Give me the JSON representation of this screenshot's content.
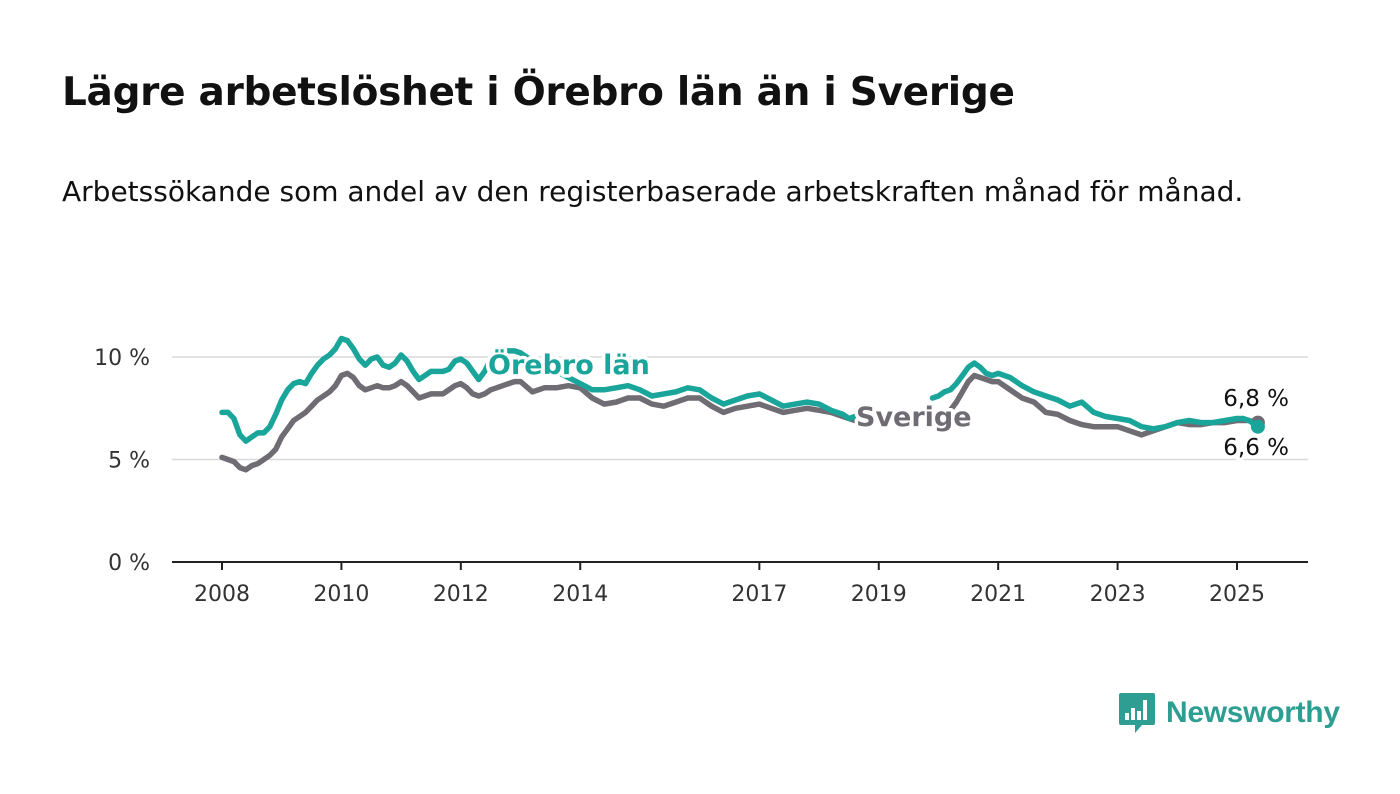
{
  "title": "Lägre arbetslöshet i Örebro län än i Sverige",
  "subtitle": "Arbetssökande som andel av den registerbaserade arbetskraften månad för månad.",
  "brand": {
    "name": "Newsworthy",
    "color": "#2d9e91"
  },
  "colors": {
    "orebro": "#1aa59a",
    "sverige": "#6f6c74",
    "grid": "#d9d9d9",
    "axis": "#222222"
  },
  "chart_data": {
    "type": "line",
    "title": "",
    "xlabel": "",
    "ylabel": "",
    "ylim": [
      0,
      11.5
    ],
    "xlim": [
      2007.2,
      2026.2
    ],
    "y_ticks": [
      {
        "value": 0,
        "label": "0 %"
      },
      {
        "value": 5,
        "label": "5 %"
      },
      {
        "value": 10,
        "label": "10 %"
      }
    ],
    "x_ticks": [
      {
        "value": 2008,
        "label": "2008"
      },
      {
        "value": 2010,
        "label": "2010"
      },
      {
        "value": 2012,
        "label": "2012"
      },
      {
        "value": 2014,
        "label": "2014"
      },
      {
        "value": 2017,
        "label": "2017"
      },
      {
        "value": 2019,
        "label": "2019"
      },
      {
        "value": 2021,
        "label": "2021"
      },
      {
        "value": 2023,
        "label": "2023"
      },
      {
        "value": 2025,
        "label": "2025"
      }
    ],
    "grid": true,
    "series": [
      {
        "name": "Sverige",
        "color": "#6f6c74",
        "end_label": "6,8 %",
        "x": [
          2008.0,
          2008.2,
          2008.3,
          2008.4,
          2008.5,
          2008.6,
          2008.7,
          2008.8,
          2008.9,
          2009.0,
          2009.1,
          2009.2,
          2009.3,
          2009.4,
          2009.5,
          2009.6,
          2009.7,
          2009.8,
          2009.9,
          2010.0,
          2010.1,
          2010.2,
          2010.3,
          2010.4,
          2010.5,
          2010.6,
          2010.7,
          2010.8,
          2010.9,
          2011.0,
          2011.1,
          2011.2,
          2011.3,
          2011.4,
          2011.5,
          2011.6,
          2011.7,
          2011.8,
          2011.9,
          2012.0,
          2012.1,
          2012.2,
          2012.3,
          2012.4,
          2012.5,
          2012.6,
          2012.7,
          2012.8,
          2012.9,
          2013.0,
          2013.2,
          2013.4,
          2013.6,
          2013.8,
          2014.0,
          2014.2,
          2014.4,
          2014.6,
          2014.8,
          2015.0,
          2015.2,
          2015.4,
          2015.6,
          2015.8,
          2016.0,
          2016.2,
          2016.4,
          2016.6,
          2016.8,
          2017.0,
          2017.2,
          2017.4,
          2017.6,
          2017.8,
          2018.0,
          2018.2,
          2018.4,
          2018.5,
          2018.6,
          2018.7,
          2020.2,
          2020.3,
          2020.4,
          2020.5,
          2020.6,
          2020.7,
          2020.8,
          2020.9,
          2021.0,
          2021.2,
          2021.4,
          2021.6,
          2021.8,
          2022.0,
          2022.2,
          2022.4,
          2022.6,
          2022.8,
          2023.0,
          2023.2,
          2023.4,
          2023.6,
          2023.8,
          2024.0,
          2024.2,
          2024.4,
          2024.6,
          2024.8,
          2025.0,
          2025.1,
          2025.2,
          2025.3,
          2025.35
        ],
        "values": [
          5.1,
          4.9,
          4.6,
          4.5,
          4.7,
          4.8,
          5.0,
          5.2,
          5.5,
          6.1,
          6.5,
          6.9,
          7.1,
          7.3,
          7.6,
          7.9,
          8.1,
          8.3,
          8.6,
          9.1,
          9.2,
          9.0,
          8.6,
          8.4,
          8.5,
          8.6,
          8.5,
          8.5,
          8.6,
          8.8,
          8.6,
          8.3,
          8.0,
          8.1,
          8.2,
          8.2,
          8.2,
          8.4,
          8.6,
          8.7,
          8.5,
          8.2,
          8.1,
          8.2,
          8.4,
          8.5,
          8.6,
          8.7,
          8.8,
          8.8,
          8.3,
          8.5,
          8.5,
          8.6,
          8.5,
          8.0,
          7.7,
          7.8,
          8.0,
          8.0,
          7.7,
          7.6,
          7.8,
          8.0,
          8.0,
          7.6,
          7.3,
          7.5,
          7.6,
          7.7,
          7.5,
          7.3,
          7.4,
          7.5,
          7.4,
          7.3,
          7.1,
          7.0,
          6.9,
          7.0,
          7.4,
          7.8,
          8.3,
          8.8,
          9.1,
          9.0,
          8.9,
          8.8,
          8.8,
          8.4,
          8.0,
          7.8,
          7.3,
          7.2,
          6.9,
          6.7,
          6.6,
          6.6,
          6.6,
          6.4,
          6.2,
          6.4,
          6.6,
          6.8,
          6.7,
          6.7,
          6.8,
          6.8,
          6.9,
          6.9,
          6.9,
          6.8,
          6.8
        ]
      },
      {
        "name": "Örebro län",
        "color": "#1aa59a",
        "end_label": "6,6 %",
        "x": [
          2008.0,
          2008.1,
          2008.2,
          2008.3,
          2008.4,
          2008.5,
          2008.6,
          2008.7,
          2008.8,
          2008.9,
          2009.0,
          2009.1,
          2009.2,
          2009.3,
          2009.4,
          2009.5,
          2009.6,
          2009.7,
          2009.8,
          2009.9,
          2010.0,
          2010.1,
          2010.2,
          2010.3,
          2010.4,
          2010.5,
          2010.6,
          2010.7,
          2010.8,
          2010.9,
          2011.0,
          2011.1,
          2011.2,
          2011.3,
          2011.4,
          2011.5,
          2011.6,
          2011.7,
          2011.8,
          2011.9,
          2012.0,
          2012.1,
          2012.2,
          2012.3,
          2012.4,
          2012.5,
          2012.6,
          2012.7,
          2012.8,
          2012.9,
          2013.0,
          2013.2,
          2013.4,
          2013.6,
          2013.8,
          2014.0,
          2014.2,
          2014.4,
          2014.6,
          2014.8,
          2015.0,
          2015.2,
          2015.4,
          2015.6,
          2015.8,
          2016.0,
          2016.2,
          2016.4,
          2016.6,
          2016.8,
          2017.0,
          2017.2,
          2017.4,
          2017.6,
          2017.8,
          2018.0,
          2018.2,
          2018.4,
          2018.5,
          2018.6,
          2018.7,
          2019.9,
          2020.0,
          2020.1,
          2020.2,
          2020.3,
          2020.4,
          2020.5,
          2020.6,
          2020.7,
          2020.8,
          2020.9,
          2021.0,
          2021.2,
          2021.4,
          2021.6,
          2021.8,
          2022.0,
          2022.2,
          2022.4,
          2022.6,
          2022.8,
          2023.0,
          2023.2,
          2023.4,
          2023.6,
          2023.8,
          2024.0,
          2024.2,
          2024.4,
          2024.6,
          2024.8,
          2025.0,
          2025.1,
          2025.2,
          2025.3,
          2025.35
        ],
        "values": [
          7.3,
          7.3,
          7.0,
          6.2,
          5.9,
          6.1,
          6.3,
          6.3,
          6.6,
          7.2,
          7.9,
          8.4,
          8.7,
          8.8,
          8.7,
          9.2,
          9.6,
          9.9,
          10.1,
          10.4,
          10.9,
          10.8,
          10.4,
          9.9,
          9.6,
          9.9,
          10.0,
          9.6,
          9.5,
          9.7,
          10.1,
          9.8,
          9.3,
          8.9,
          9.1,
          9.3,
          9.3,
          9.3,
          9.4,
          9.8,
          9.9,
          9.7,
          9.3,
          8.9,
          9.3,
          9.9,
          10.1,
          10.3,
          10.3,
          10.3,
          10.2,
          9.8,
          9.6,
          9.3,
          9.0,
          8.7,
          8.4,
          8.4,
          8.5,
          8.6,
          8.4,
          8.1,
          8.2,
          8.3,
          8.5,
          8.4,
          8.0,
          7.7,
          7.9,
          8.1,
          8.2,
          7.9,
          7.6,
          7.7,
          7.8,
          7.7,
          7.4,
          7.2,
          7.0,
          7.1,
          7.3,
          8.0,
          8.1,
          8.3,
          8.4,
          8.7,
          9.1,
          9.5,
          9.7,
          9.5,
          9.2,
          9.1,
          9.2,
          9.0,
          8.6,
          8.3,
          8.1,
          7.9,
          7.6,
          7.8,
          7.3,
          7.1,
          7.0,
          6.9,
          6.6,
          6.5,
          6.6,
          6.8,
          6.9,
          6.8,
          6.8,
          6.9,
          7.0,
          7.0,
          6.9,
          6.7,
          6.6
        ]
      }
    ]
  }
}
